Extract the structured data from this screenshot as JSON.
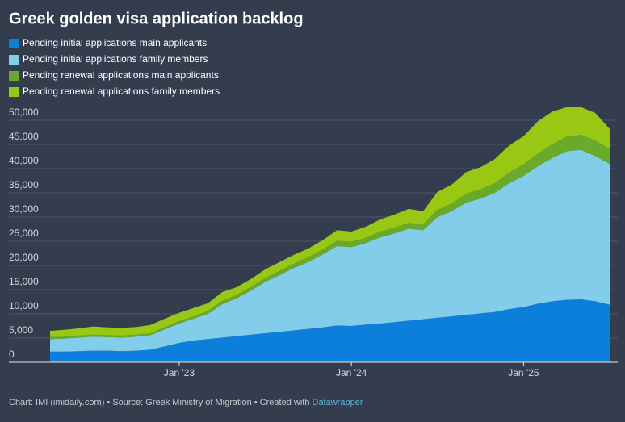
{
  "chart_data": {
    "type": "stacked-area",
    "title": "Greek golden visa application backlog",
    "categories": [
      null,
      null,
      null,
      null,
      null,
      null,
      null,
      null,
      null,
      "Jan '23",
      null,
      null,
      null,
      null,
      null,
      null,
      null,
      null,
      null,
      null,
      null,
      "Jan '24",
      null,
      null,
      null,
      null,
      null,
      null,
      null,
      null,
      null,
      null,
      null,
      "Jan '25",
      null,
      null,
      null,
      null,
      null,
      null
    ],
    "series": [
      {
        "name": "Pending initial applications main applicants",
        "color": "#0b7fd9",
        "values": [
          2200,
          2200,
          2300,
          2400,
          2400,
          2300,
          2400,
          2600,
          3300,
          4000,
          4500,
          4800,
          5100,
          5400,
          5700,
          6000,
          6300,
          6600,
          6900,
          7200,
          7600,
          7500,
          7800,
          8000,
          8300,
          8600,
          8900,
          9200,
          9500,
          9800,
          10100,
          10400,
          11000,
          11400,
          12100,
          12600,
          12900,
          13000,
          12600,
          11900
        ]
      },
      {
        "name": "Pending initial applications family members",
        "color": "#82cdea",
        "values": [
          2600,
          2700,
          2800,
          2900,
          2800,
          2800,
          2900,
          3000,
          3500,
          4000,
          4500,
          5200,
          6900,
          7800,
          9100,
          10600,
          11700,
          12900,
          13800,
          15100,
          16400,
          16300,
          16800,
          17800,
          18300,
          19000,
          18400,
          20800,
          21700,
          23200,
          23700,
          24600,
          26000,
          27100,
          28400,
          29600,
          30700,
          30900,
          30000,
          29100
        ]
      },
      {
        "name": "Pending renewal applications main applicants",
        "color": "#6aaa2a",
        "values": [
          400,
          400,
          400,
          400,
          400,
          400,
          400,
          400,
          500,
          500,
          500,
          600,
          700,
          700,
          800,
          800,
          900,
          900,
          1000,
          1000,
          1100,
          1100,
          1100,
          1200,
          1200,
          1200,
          1200,
          1500,
          1600,
          1800,
          1900,
          2000,
          2200,
          2400,
          2600,
          2800,
          3000,
          3100,
          3200,
          3100
        ]
      },
      {
        "name": "Pending renewal applications family members",
        "color": "#98c814",
        "values": [
          1300,
          1400,
          1500,
          1700,
          1600,
          1600,
          1600,
          1700,
          1700,
          1700,
          1700,
          1600,
          1800,
          1600,
          1600,
          1800,
          1800,
          1800,
          1800,
          1900,
          2200,
          2100,
          2300,
          2500,
          2700,
          2900,
          2700,
          3700,
          3900,
          4500,
          4600,
          5000,
          5600,
          5800,
          6700,
          6800,
          6100,
          5700,
          5700,
          4100
        ]
      }
    ],
    "ylim": [
      0,
      53000
    ],
    "yticks": [
      0,
      {
        "value": 5000,
        "label": "5,000"
      },
      {
        "value": 10000,
        "label": "10,000"
      },
      {
        "value": 15000,
        "label": "15,000"
      },
      {
        "value": 20000,
        "label": "20,000"
      },
      {
        "value": 25000,
        "label": "25,000"
      },
      {
        "value": 30000,
        "label": "30,000"
      },
      {
        "value": 35000,
        "label": "35,000"
      },
      {
        "value": 40000,
        "label": "40,000"
      },
      {
        "value": 45000,
        "label": "45,000"
      },
      {
        "value": 50000,
        "label": "50,000"
      }
    ],
    "grid": true,
    "footer": {
      "text": "Chart: IMI (imidaily.com) • Source: Greek Ministry of Migration • Created with ",
      "link": "Datawrapper"
    }
  }
}
